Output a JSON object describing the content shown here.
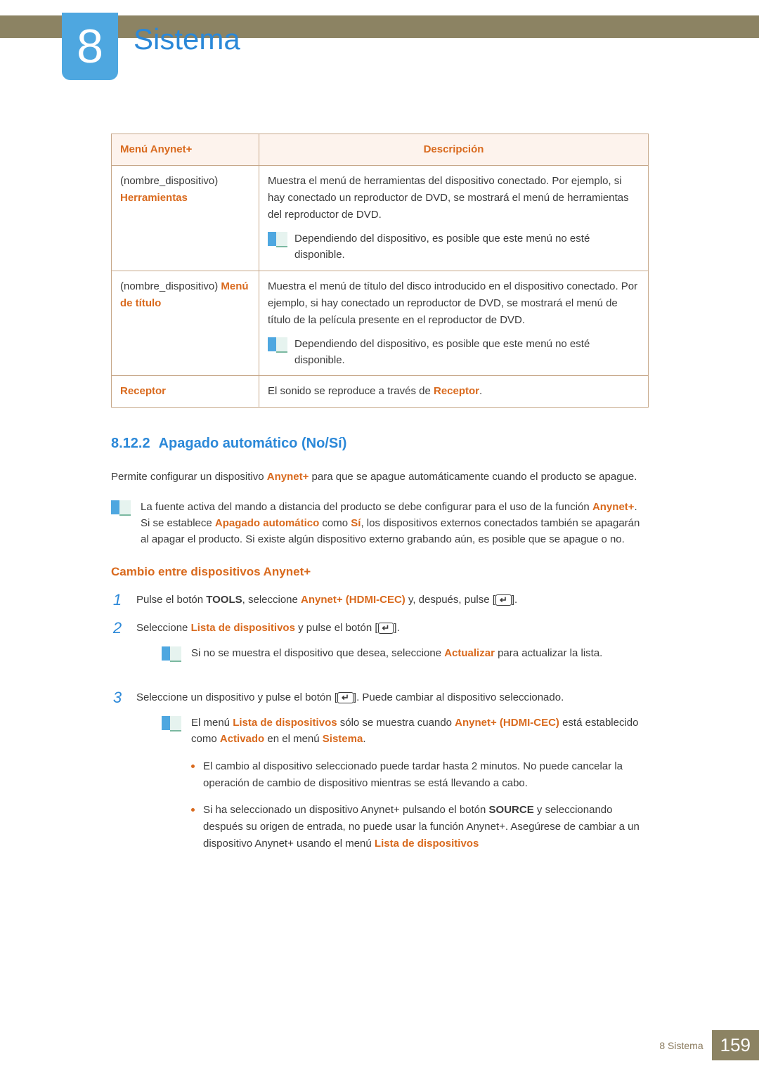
{
  "chapter": {
    "number": "8",
    "title": "Sistema"
  },
  "table": {
    "headers": {
      "col1": "Menú Anynet+",
      "col2": "Descripción"
    },
    "row1": {
      "name_prefix": "(nombre_dispositivo)",
      "label": "Herramientas",
      "desc": "Muestra el menú de herramientas del dispositivo conectado. Por ejemplo, si hay conectado un reproductor de DVD, se mostrará el menú de herramientas del reproductor de DVD.",
      "note": "Dependiendo del dispositivo, es posible que este menú no esté disponible."
    },
    "row2": {
      "name_prefix": "(nombre_dispositivo) ",
      "label": "Menú de título",
      "desc": "Muestra el menú de título del disco introducido en el dispositivo conectado. Por ejemplo, si hay conectado un reproductor de DVD, se mostrará el menú de título de la película presente en el reproductor de DVD.",
      "note": "Dependiendo del dispositivo, es posible que este menú no esté disponible."
    },
    "row3": {
      "label": "Receptor",
      "desc_pre": "El sonido se reproduce a través de ",
      "desc_hl": "Receptor",
      "desc_post": "."
    }
  },
  "section": {
    "num": "8.12.2",
    "title": "Apagado automático (No/Sí)",
    "intro_pre": "Permite configurar un dispositivo ",
    "intro_hl": "Anynet+",
    "intro_post": " para que se apague automáticamente cuando el producto se apague.",
    "callout_p1": "La fuente activa del mando a distancia del producto se debe configurar para el uso de la función ",
    "callout_hl1": "Anynet+",
    "callout_p2": ". Si se establece ",
    "callout_hl2": "Apagado automático",
    "callout_p3": " como ",
    "callout_hl3": "Sí",
    "callout_p4": ", los dispositivos externos conectados también se apagarán al apagar el producto. Si existe algún dispositivo externo grabando aún, es posible que se apague o no."
  },
  "sub": {
    "title": "Cambio entre dispositivos Anynet+",
    "step1_pre": "Pulse el botón ",
    "step1_hl1": "TOOLS",
    "step1_mid": ", seleccione ",
    "step1_hl2": "Anynet+ (HDMI-CEC)",
    "step1_post": " y, después, pulse [",
    "step1_end": "].",
    "step2_pre": "Seleccione ",
    "step2_hl": "Lista de dispositivos",
    "step2_post": " y pulse el botón [",
    "step2_end": "].",
    "step2_note_pre": "Si no se muestra el dispositivo que desea, seleccione ",
    "step2_note_hl": "Actualizar",
    "step2_note_post": " para actualizar la lista.",
    "step3_pre": "Seleccione un dispositivo y pulse el botón [",
    "step3_post": "]. Puede cambiar al dispositivo seleccionado.",
    "step3_callout_p1": "El menú ",
    "step3_callout_hl1": "Lista de dispositivos",
    "step3_callout_p2": " sólo se muestra cuando ",
    "step3_callout_hl2": "Anynet+ (HDMI-CEC)",
    "step3_callout_p3": " está establecido como ",
    "step3_callout_hl3": "Activado",
    "step3_callout_p4": " en el menú ",
    "step3_callout_hl4": "Sistema",
    "step3_callout_p5": ".",
    "bullet1": "El cambio al dispositivo seleccionado puede tardar hasta 2 minutos. No puede cancelar la operación de cambio de dispositivo mientras se está llevando a cabo.",
    "bullet2_p1": "Si ha seleccionado un dispositivo Anynet+ pulsando el botón ",
    "bullet2_hl1": "SOURCE",
    "bullet2_p2": " y seleccionando después su origen de entrada, no puede usar la función Anynet+. Asegúrese de cambiar a un dispositivo Anynet+ usando el menú ",
    "bullet2_hl2": "Lista de dispositivos"
  },
  "footer": {
    "chapter_ref": "8 Sistema",
    "page": "159"
  }
}
